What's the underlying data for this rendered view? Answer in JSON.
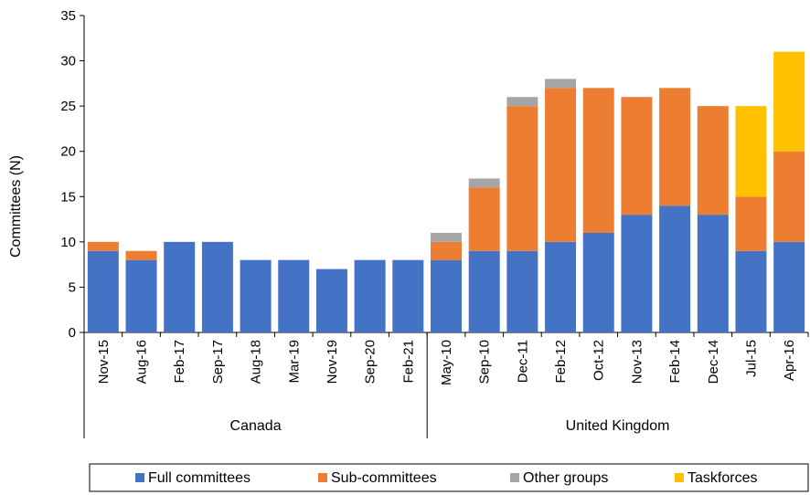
{
  "chart_data": {
    "type": "bar",
    "stacked": true,
    "ylabel": "Committees (N)",
    "ylim": [
      0,
      35
    ],
    "yticks": [
      0,
      5,
      10,
      15,
      20,
      25,
      30,
      35
    ],
    "grid": false,
    "legend_position": "bottom",
    "categories": [
      "Nov-15",
      "Aug-16",
      "Feb-17",
      "Sep-17",
      "Aug-18",
      "Mar-19",
      "Nov-19",
      "Sep-20",
      "Feb-21",
      "May-10",
      "Sep-10",
      "Dec-11",
      "Feb-12",
      "Oct-12",
      "Nov-13",
      "Feb-14",
      "Dec-14",
      "Jul-15",
      "Apr-16"
    ],
    "groups": [
      {
        "label": "Canada",
        "count": 9
      },
      {
        "label": "United Kingdom",
        "count": 10
      }
    ],
    "series": [
      {
        "name": "Full committees",
        "color": "#4472C4",
        "values": [
          9,
          8,
          10,
          10,
          8,
          8,
          7,
          8,
          8,
          8,
          9,
          9,
          10,
          11,
          13,
          14,
          13,
          9,
          10
        ]
      },
      {
        "name": "Sub-committees",
        "color": "#ED7D31",
        "values": [
          1,
          1,
          0,
          0,
          0,
          0,
          0,
          0,
          0,
          2,
          7,
          16,
          17,
          16,
          13,
          13,
          12,
          6,
          10
        ]
      },
      {
        "name": "Other groups",
        "color": "#A5A5A5",
        "values": [
          0,
          0,
          0,
          0,
          0,
          0,
          0,
          0,
          0,
          1,
          1,
          1,
          1,
          0,
          0,
          0,
          0,
          0,
          0
        ]
      },
      {
        "name": "Taskforces",
        "color": "#FFC000",
        "values": [
          0,
          0,
          0,
          0,
          0,
          0,
          0,
          0,
          0,
          0,
          0,
          0,
          0,
          0,
          0,
          0,
          0,
          10,
          11
        ]
      }
    ]
  }
}
